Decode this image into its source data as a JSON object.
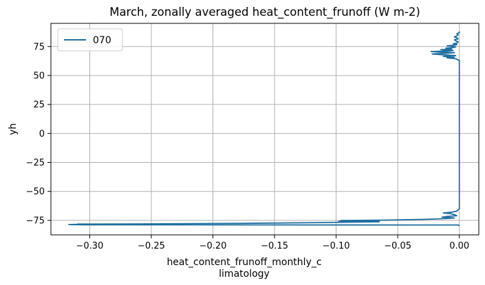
{
  "chart_data": {
    "type": "line",
    "title": "March, zonally averaged heat_content_frunoff (W m-2)",
    "xlabel_lines": [
      "heat_content_frunoff_monthly_c",
      "limatology"
    ],
    "ylabel": "yh",
    "xlim": [
      -0.3315,
      0.0158
    ],
    "ylim": [
      -87.5,
      95.0
    ],
    "xticks": [
      -0.3,
      -0.25,
      -0.2,
      -0.15,
      -0.1,
      -0.05,
      0.0
    ],
    "xtick_labels": [
      "−0.30",
      "−0.25",
      "−0.20",
      "−0.15",
      "−0.10",
      "−0.05",
      "0.00"
    ],
    "yticks": [
      -75,
      -50,
      -25,
      0,
      25,
      50,
      75
    ],
    "ytick_labels": [
      "−75",
      "−50",
      "−25",
      "0",
      "25",
      "50",
      "75"
    ],
    "grid": true,
    "legend_position": "top-left",
    "series": [
      {
        "name": "070",
        "color": "#1f6ea0",
        "points": [
          [
            0.0,
            -80.0
          ],
          [
            -0.0005,
            -79.0
          ],
          [
            -0.305,
            -78.8
          ],
          [
            -0.317,
            -78.6
          ],
          [
            -0.313,
            -78.5
          ],
          [
            -0.295,
            -78.4
          ],
          [
            -0.31,
            -78.2
          ],
          [
            -0.25,
            -78.0
          ],
          [
            -0.18,
            -77.6
          ],
          [
            -0.12,
            -77.0
          ],
          [
            -0.065,
            -76.2
          ],
          [
            -0.098,
            -75.8
          ],
          [
            -0.065,
            -75.5
          ],
          [
            -0.096,
            -75.1
          ],
          [
            -0.06,
            -74.8
          ],
          [
            -0.03,
            -74.2
          ],
          [
            -0.012,
            -73.5
          ],
          [
            -0.004,
            -73.0
          ],
          [
            -0.008,
            -72.6
          ],
          [
            -0.014,
            -72.2
          ],
          [
            -0.01,
            -71.6
          ],
          [
            -0.002,
            -71.0
          ],
          [
            -0.004,
            -70.0
          ],
          [
            -0.007,
            -69.3
          ],
          [
            -0.013,
            -68.6
          ],
          [
            -0.006,
            -67.9
          ],
          [
            -0.002,
            -67.0
          ],
          [
            0.0,
            -65.0
          ],
          [
            0.0,
            -30.0
          ],
          [
            0.0,
            0.0
          ],
          [
            0.0,
            30.0
          ],
          [
            0.0,
            60.0
          ],
          [
            0.0,
            63.0
          ],
          [
            -0.003,
            64.5
          ],
          [
            -0.01,
            65.2
          ],
          [
            -0.004,
            65.8
          ],
          [
            -0.013,
            66.5
          ],
          [
            -0.003,
            67.2
          ],
          [
            -0.014,
            67.9
          ],
          [
            -0.022,
            68.6
          ],
          [
            -0.01,
            69.2
          ],
          [
            -0.004,
            69.7
          ],
          [
            -0.016,
            70.2
          ],
          [
            -0.023,
            70.7
          ],
          [
            -0.01,
            71.1
          ],
          [
            -0.005,
            71.5
          ],
          [
            -0.011,
            71.9
          ],
          [
            -0.015,
            72.3
          ],
          [
            -0.006,
            72.7
          ],
          [
            -0.008,
            73.2
          ],
          [
            -0.011,
            73.6
          ],
          [
            -0.005,
            74.1
          ],
          [
            -0.003,
            74.6
          ],
          [
            -0.006,
            75.1
          ],
          [
            -0.01,
            75.6
          ],
          [
            -0.004,
            76.1
          ],
          [
            -0.002,
            76.7
          ],
          [
            -0.005,
            77.3
          ],
          [
            -0.002,
            78.0
          ],
          [
            -0.001,
            79.0
          ],
          [
            -0.003,
            80.0
          ],
          [
            -0.004,
            80.8
          ],
          [
            -0.001,
            81.6
          ],
          [
            -0.002,
            82.5
          ],
          [
            -0.004,
            83.3
          ],
          [
            -0.002,
            84.2
          ],
          [
            -0.001,
            85.2
          ],
          [
            -0.002,
            86.0
          ],
          [
            0.0,
            87.0
          ],
          [
            0.0,
            88.0
          ]
        ]
      }
    ]
  }
}
